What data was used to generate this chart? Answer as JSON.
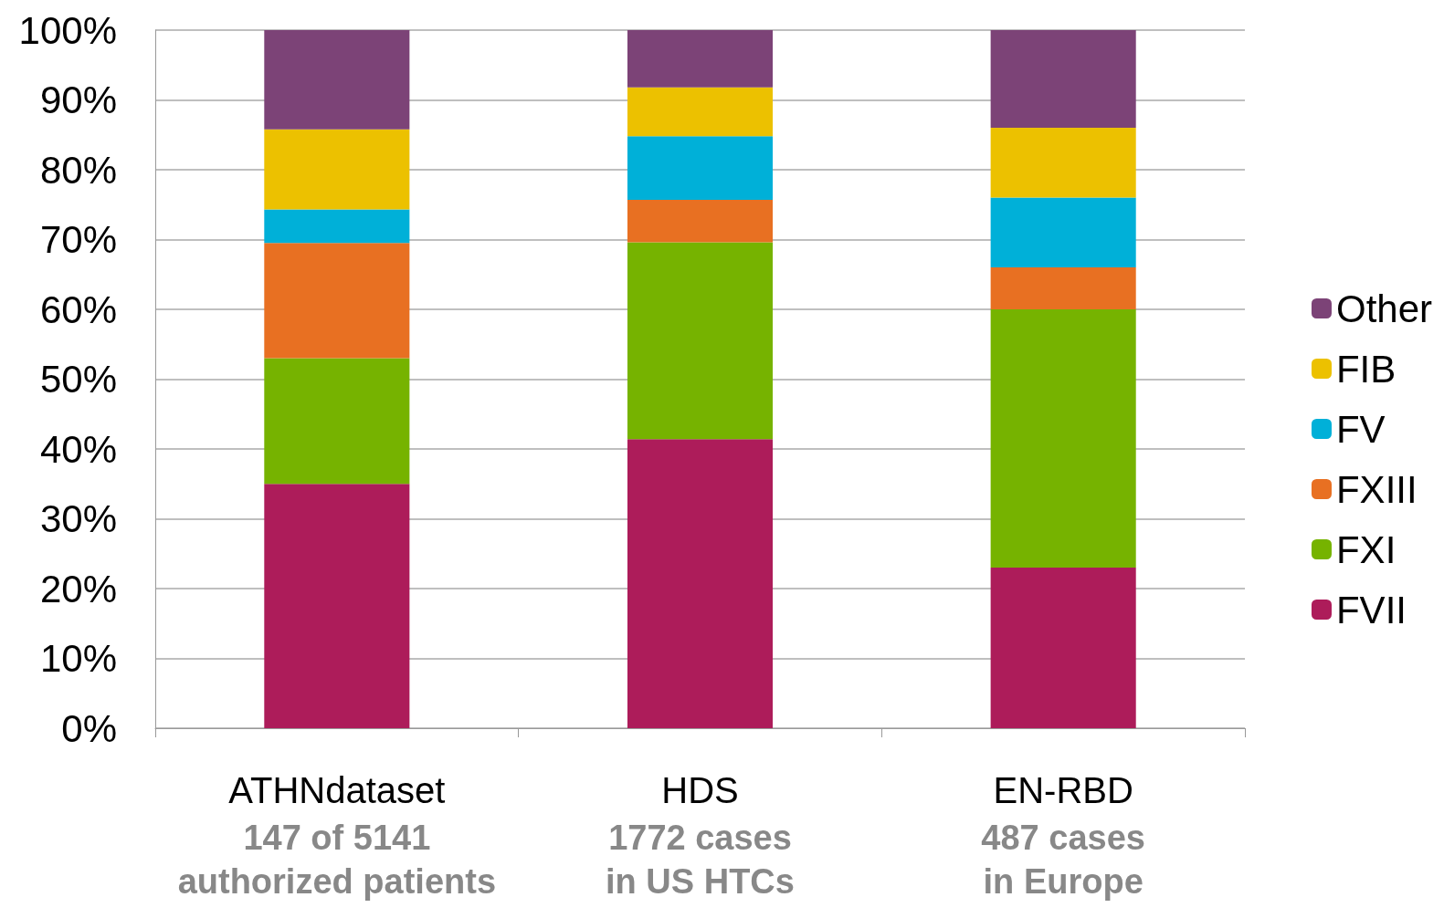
{
  "chart_data": {
    "type": "bar",
    "stacked": true,
    "categories": [
      "ATHNdataset\n147 of 5141\nauthorized patients",
      "HDS\n1772 cases\nin US HTCs",
      "EN-RBD\n487 cases\nin Europe"
    ],
    "series": [
      {
        "name": "FVII",
        "color": "#ad1c5a",
        "values": [
          35,
          41.4,
          23
        ]
      },
      {
        "name": "FXI",
        "color": "#76b300",
        "values": [
          18,
          28.2,
          37
        ]
      },
      {
        "name": "FXIII",
        "color": "#e87022",
        "values": [
          16.5,
          6.1,
          6
        ]
      },
      {
        "name": "FV",
        "color": "#00b0d8",
        "values": [
          4.8,
          9.1,
          10
        ]
      },
      {
        "name": "FIB",
        "color": "#ecc100",
        "values": [
          11.5,
          7,
          10
        ]
      },
      {
        "name": "Other",
        "color": "#7c4377",
        "values": [
          14.2,
          8.2,
          14
        ]
      }
    ],
    "ylim": [
      0,
      100
    ],
    "yticks": [
      {
        "value": 0,
        "label": "0%"
      },
      {
        "value": 10,
        "label": "10%"
      },
      {
        "value": 20,
        "label": "20%"
      },
      {
        "value": 30,
        "label": "30%"
      },
      {
        "value": 40,
        "label": "40%"
      },
      {
        "value": 50,
        "label": "50%"
      },
      {
        "value": 60,
        "label": "60%"
      },
      {
        "value": 70,
        "label": "70%"
      },
      {
        "value": 80,
        "label": "80%"
      },
      {
        "value": 90,
        "label": "90%"
      },
      {
        "value": 100,
        "label": "100%"
      }
    ],
    "grid": "y",
    "legend": "right"
  }
}
